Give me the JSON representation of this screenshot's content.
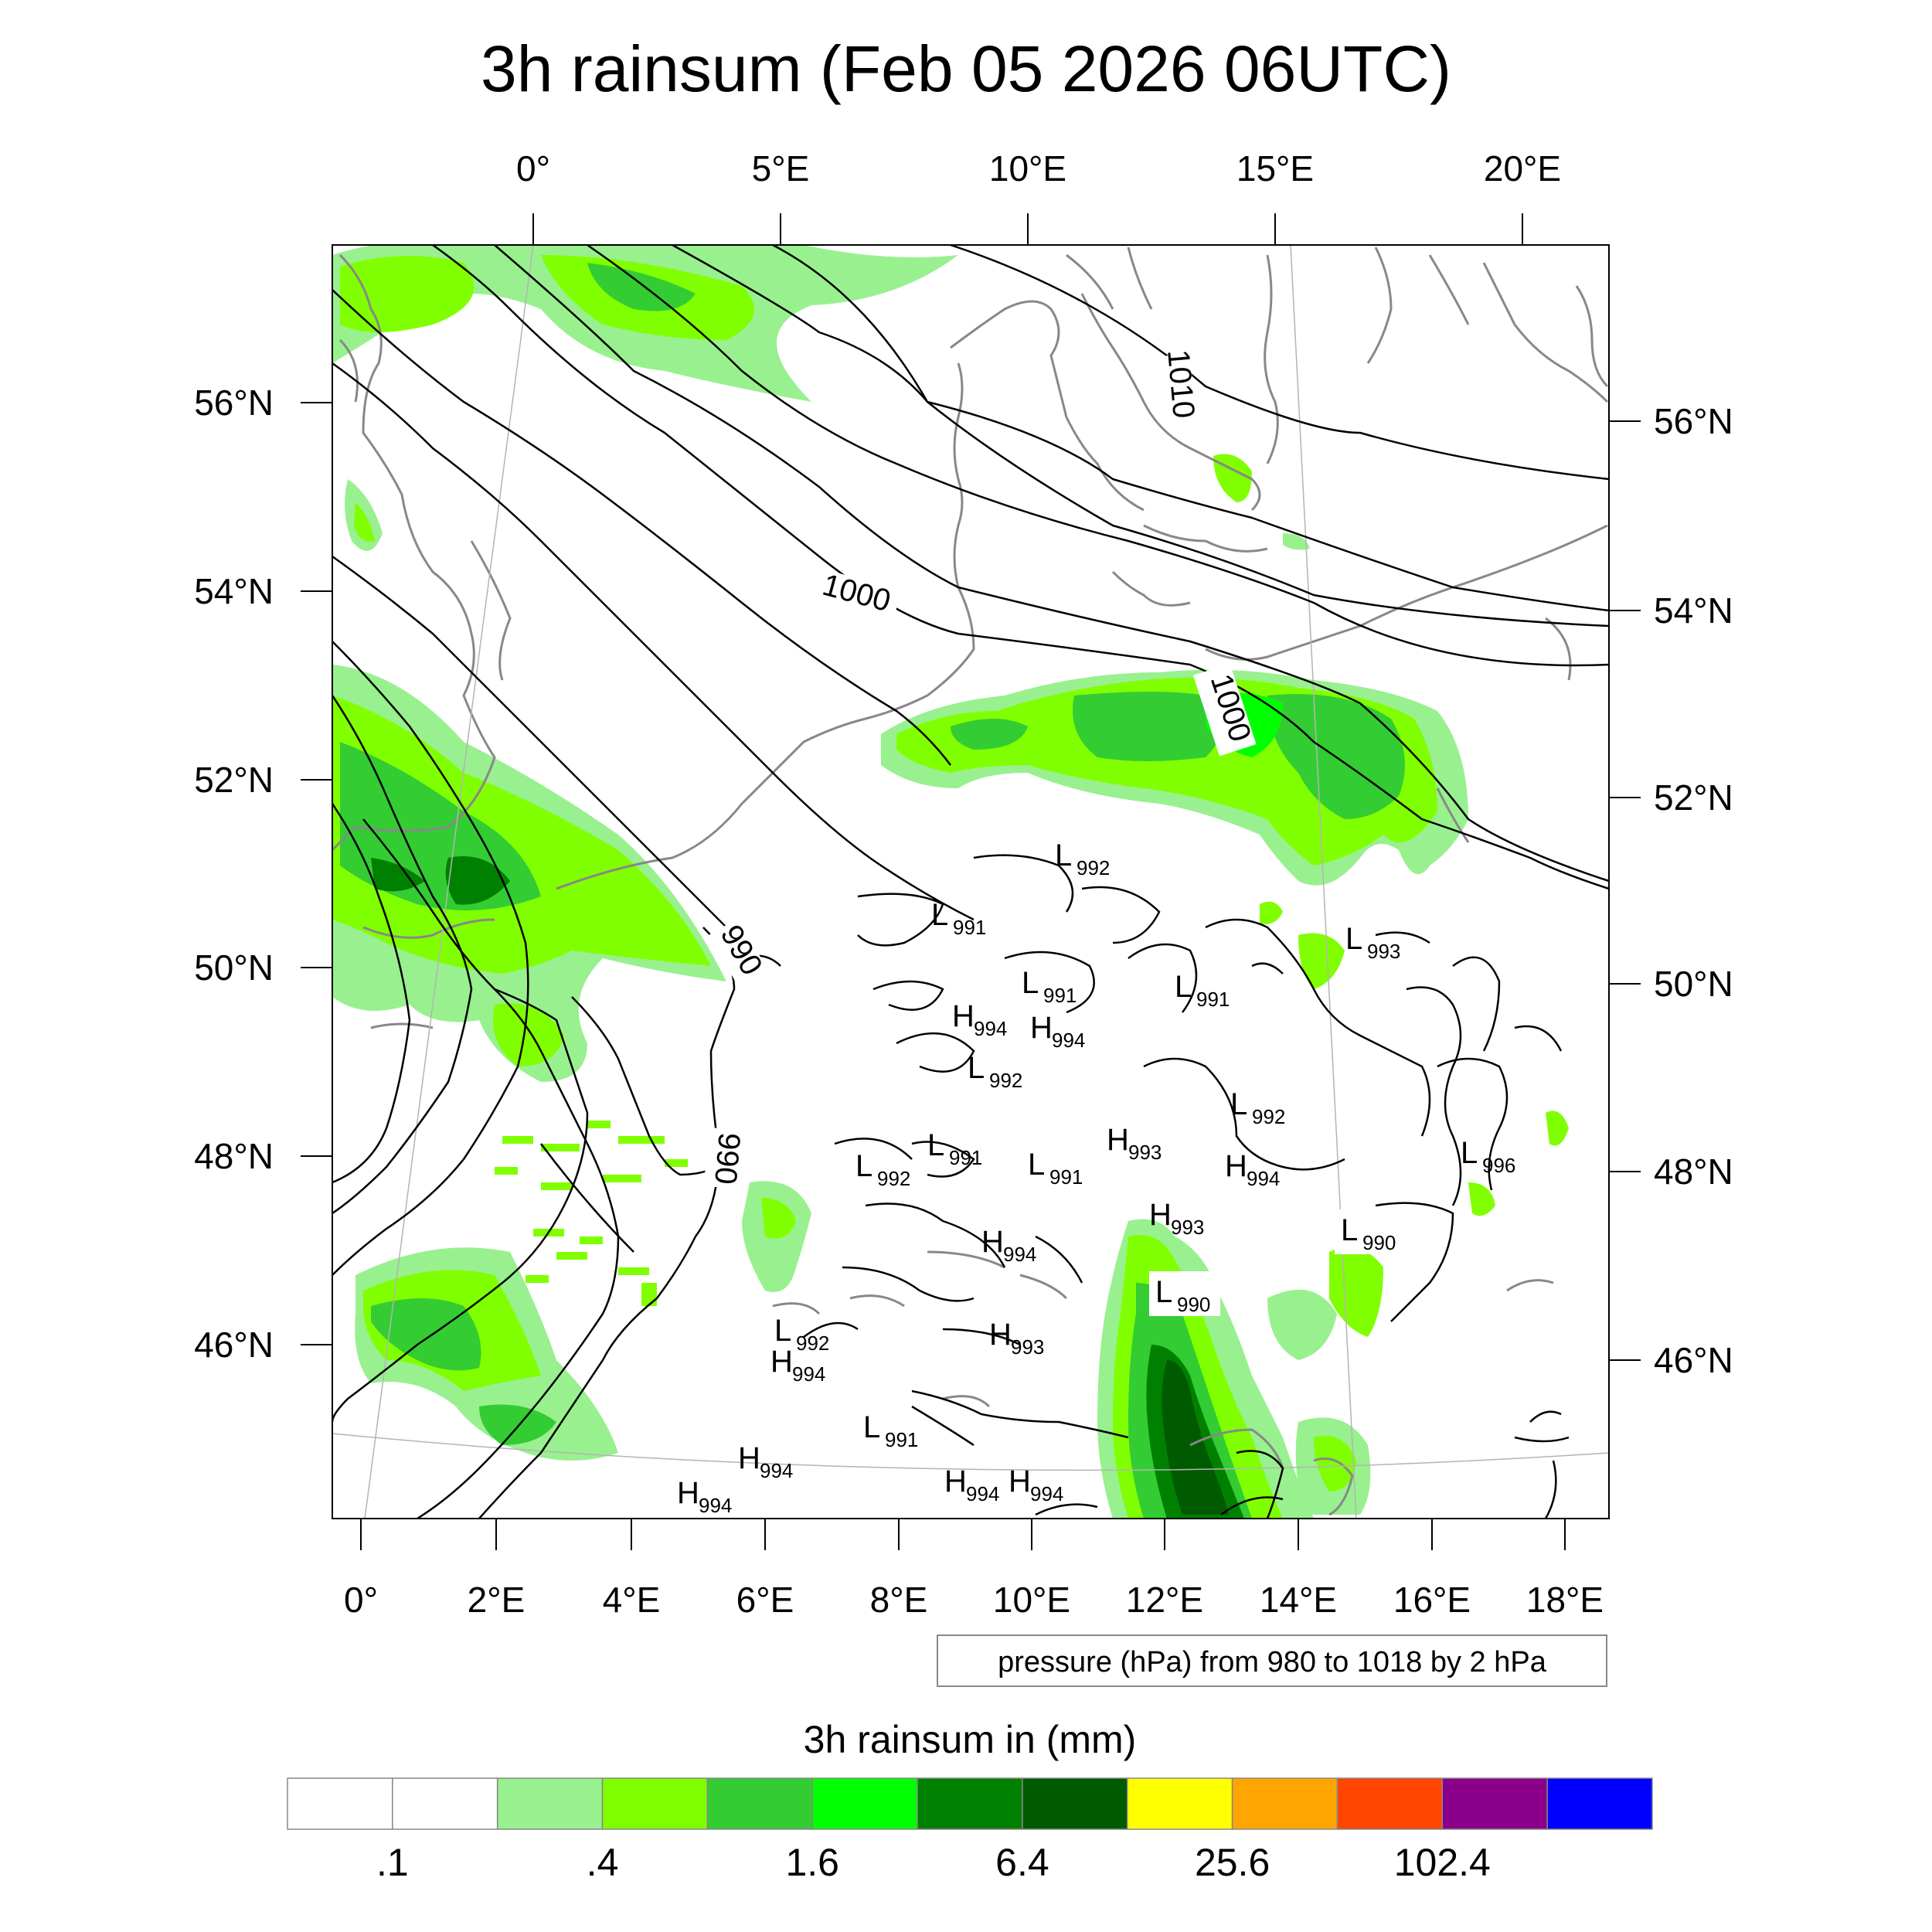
{
  "title": "3h rainsum (Feb 05 2026 06UTC)",
  "top_lon_labels": [
    "0°",
    "5°E",
    "10°E",
    "15°E",
    "20°E"
  ],
  "bottom_lon_labels": [
    "0°",
    "2°E",
    "4°E",
    "6°E",
    "8°E",
    "10°E",
    "12°E",
    "14°E",
    "16°E",
    "18°E"
  ],
  "left_lat_labels": [
    "56°N",
    "54°N",
    "52°N",
    "50°N",
    "48°N",
    "46°N"
  ],
  "right_lat_labels": [
    "56°N",
    "54°N",
    "52°N",
    "50°N",
    "48°N",
    "46°N"
  ],
  "isobar_labels": [
    "1010",
    "1000",
    "1000",
    "990",
    "990"
  ],
  "pressure_centers": [
    {
      "type": "L",
      "value": "992"
    },
    {
      "type": "L",
      "value": "991"
    },
    {
      "type": "L",
      "value": "991"
    },
    {
      "type": "L",
      "value": "991"
    },
    {
      "type": "L",
      "value": "993"
    },
    {
      "type": "H",
      "value": "994"
    },
    {
      "type": "H",
      "value": "994"
    },
    {
      "type": "L",
      "value": "992"
    },
    {
      "type": "L",
      "value": "991"
    },
    {
      "type": "H",
      "value": "993"
    },
    {
      "type": "L",
      "value": "992"
    },
    {
      "type": "L",
      "value": "991"
    },
    {
      "type": "L",
      "value": "992"
    },
    {
      "type": "H",
      "value": "994"
    },
    {
      "type": "L",
      "value": "996"
    },
    {
      "type": "H",
      "value": "993"
    },
    {
      "type": "L",
      "value": "990"
    },
    {
      "type": "H",
      "value": "994"
    },
    {
      "type": "L",
      "value": "990"
    },
    {
      "type": "L",
      "value": "992"
    },
    {
      "type": "H",
      "value": "994"
    },
    {
      "type": "H",
      "value": "993"
    },
    {
      "type": "L",
      "value": "991"
    },
    {
      "type": "H",
      "value": "994"
    },
    {
      "type": "H",
      "value": "994"
    },
    {
      "type": "H",
      "value": "994"
    },
    {
      "type": "H",
      "value": "994"
    }
  ],
  "info_box": "pressure (hPa) from 980 to 1018 by 2 hPa",
  "colorbar": {
    "title": "3h rainsum in (mm)",
    "colors": [
      "#ffffff",
      "#ffffff",
      "#99f08f",
      "#80ff00",
      "#33cc33",
      "#00ff00",
      "#008000",
      "#005a00",
      "#ffff00",
      "#ffa500",
      "#ff4500",
      "#8b008b",
      "#0000ff"
    ],
    "labels": [
      ".1",
      ".4",
      "1.6",
      "6.4",
      "25.6",
      "102.4"
    ]
  },
  "colors": {
    "isobar": "#000000",
    "coastline": "#888888",
    "graticule": "#b4b4b4"
  }
}
